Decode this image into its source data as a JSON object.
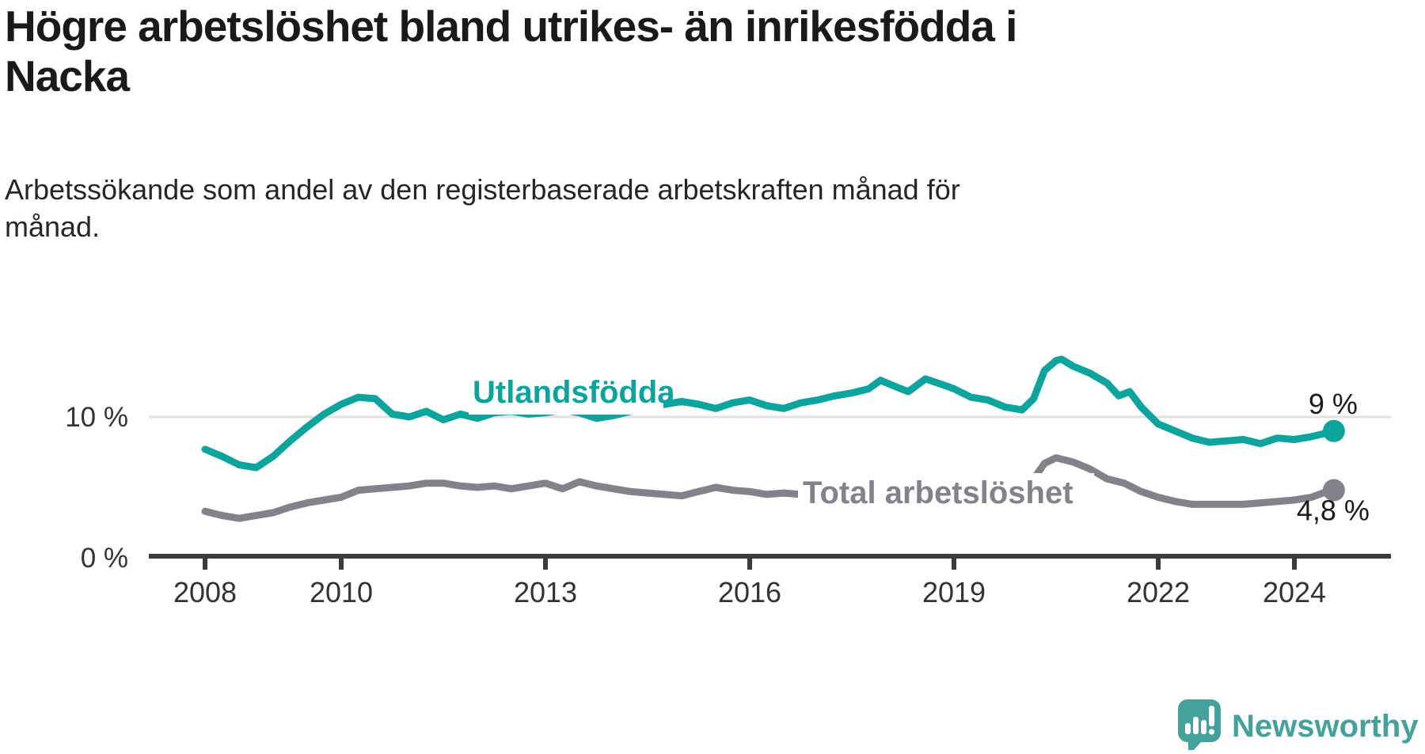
{
  "header": {
    "title": "Högre arbetslöshet bland utrikes- än inrikesfödda i\nNacka",
    "subtitle": "Arbetssökande som andel av den registerbaserade arbetskraften månad för\nmånad."
  },
  "chart_data": {
    "type": "line",
    "title": "Högre arbetslöshet bland utrikes- än inrikesfödda i Nacka",
    "subtitle": "Arbetssökande som andel av den registerbaserade arbetskraften månad för månad.",
    "unit": "%",
    "grid": "single horizontal gridline at 10 %",
    "legend_position": "inline labels on lines",
    "x_axis": {
      "ticks": [
        2008,
        2010,
        2013,
        2016,
        2019,
        2022,
        2024
      ],
      "range": [
        2007.2,
        2025.4
      ]
    },
    "y_axis": {
      "ticks": [
        {
          "value": 10,
          "label": "10 %"
        },
        {
          "value": 0,
          "label": "0 %"
        }
      ],
      "range": [
        0,
        15.5
      ]
    },
    "series": [
      {
        "name": "Utlandsfödda",
        "color": "#0ca49c",
        "end_label": "9 %",
        "end_value": 9.0,
        "points": [
          [
            2008.0,
            7.7
          ],
          [
            2008.25,
            7.2
          ],
          [
            2008.5,
            6.6
          ],
          [
            2008.75,
            6.4
          ],
          [
            2009.0,
            7.2
          ],
          [
            2009.25,
            8.3
          ],
          [
            2009.5,
            9.3
          ],
          [
            2009.75,
            10.2
          ],
          [
            2010.0,
            10.9
          ],
          [
            2010.25,
            11.4
          ],
          [
            2010.5,
            11.3
          ],
          [
            2010.75,
            10.2
          ],
          [
            2011.0,
            10.0
          ],
          [
            2011.25,
            10.4
          ],
          [
            2011.5,
            9.8
          ],
          [
            2011.75,
            10.2
          ],
          [
            2012.0,
            9.9
          ],
          [
            2012.25,
            10.3
          ],
          [
            2012.5,
            10.4
          ],
          [
            2012.75,
            10.2
          ],
          [
            2013.0,
            10.3
          ],
          [
            2013.25,
            10.5
          ],
          [
            2013.5,
            10.3
          ],
          [
            2013.75,
            9.9
          ],
          [
            2014.0,
            10.1
          ],
          [
            2014.25,
            10.4
          ],
          [
            2014.5,
            10.6
          ],
          [
            2014.75,
            10.9
          ],
          [
            2015.0,
            11.1
          ],
          [
            2015.25,
            10.9
          ],
          [
            2015.5,
            10.6
          ],
          [
            2015.75,
            11.0
          ],
          [
            2016.0,
            11.2
          ],
          [
            2016.25,
            10.8
          ],
          [
            2016.5,
            10.6
          ],
          [
            2016.75,
            11.0
          ],
          [
            2017.0,
            11.2
          ],
          [
            2017.25,
            11.5
          ],
          [
            2017.5,
            11.7
          ],
          [
            2017.75,
            12.0
          ],
          [
            2017.92,
            12.6
          ],
          [
            2018.17,
            12.1
          ],
          [
            2018.33,
            11.8
          ],
          [
            2018.58,
            12.7
          ],
          [
            2018.83,
            12.3
          ],
          [
            2019.0,
            12.0
          ],
          [
            2019.25,
            11.4
          ],
          [
            2019.5,
            11.2
          ],
          [
            2019.75,
            10.7
          ],
          [
            2020.0,
            10.5
          ],
          [
            2020.17,
            11.3
          ],
          [
            2020.33,
            13.3
          ],
          [
            2020.5,
            14.0
          ],
          [
            2020.58,
            14.1
          ],
          [
            2020.75,
            13.6
          ],
          [
            2021.0,
            13.1
          ],
          [
            2021.25,
            12.4
          ],
          [
            2021.42,
            11.5
          ],
          [
            2021.58,
            11.8
          ],
          [
            2021.75,
            10.7
          ],
          [
            2022.0,
            9.5
          ],
          [
            2022.25,
            9.0
          ],
          [
            2022.5,
            8.5
          ],
          [
            2022.75,
            8.2
          ],
          [
            2023.0,
            8.3
          ],
          [
            2023.25,
            8.4
          ],
          [
            2023.5,
            8.1
          ],
          [
            2023.75,
            8.5
          ],
          [
            2024.0,
            8.4
          ],
          [
            2024.25,
            8.6
          ],
          [
            2024.42,
            8.8
          ],
          [
            2024.58,
            9.0
          ]
        ]
      },
      {
        "name": "Total arbetslöshet",
        "color": "#82828a",
        "end_label": "4,8 %",
        "end_value": 4.8,
        "points": [
          [
            2008.0,
            3.3
          ],
          [
            2008.25,
            3.0
          ],
          [
            2008.5,
            2.8
          ],
          [
            2008.75,
            3.0
          ],
          [
            2009.0,
            3.2
          ],
          [
            2009.25,
            3.6
          ],
          [
            2009.5,
            3.9
          ],
          [
            2009.75,
            4.1
          ],
          [
            2010.0,
            4.3
          ],
          [
            2010.25,
            4.8
          ],
          [
            2010.5,
            4.9
          ],
          [
            2010.75,
            5.0
          ],
          [
            2011.0,
            5.1
          ],
          [
            2011.25,
            5.3
          ],
          [
            2011.5,
            5.3
          ],
          [
            2011.75,
            5.1
          ],
          [
            2012.0,
            5.0
          ],
          [
            2012.25,
            5.1
          ],
          [
            2012.5,
            4.9
          ],
          [
            2012.75,
            5.1
          ],
          [
            2013.0,
            5.3
          ],
          [
            2013.25,
            4.9
          ],
          [
            2013.5,
            5.4
          ],
          [
            2013.75,
            5.1
          ],
          [
            2014.0,
            4.9
          ],
          [
            2014.25,
            4.7
          ],
          [
            2014.5,
            4.6
          ],
          [
            2014.75,
            4.5
          ],
          [
            2015.0,
            4.4
          ],
          [
            2015.25,
            4.7
          ],
          [
            2015.5,
            5.0
          ],
          [
            2015.75,
            4.8
          ],
          [
            2016.0,
            4.7
          ],
          [
            2016.25,
            4.5
          ],
          [
            2016.5,
            4.6
          ],
          [
            2016.75,
            4.5
          ],
          [
            2017.0,
            4.6
          ],
          [
            2017.25,
            4.7
          ],
          [
            2017.5,
            4.6
          ],
          [
            2017.75,
            4.7
          ],
          [
            2018.0,
            4.8
          ],
          [
            2018.25,
            4.7
          ],
          [
            2018.5,
            4.8
          ],
          [
            2018.75,
            4.7
          ],
          [
            2019.0,
            4.6
          ],
          [
            2019.25,
            4.5
          ],
          [
            2019.5,
            4.6
          ],
          [
            2019.75,
            4.7
          ],
          [
            2020.0,
            4.9
          ],
          [
            2020.17,
            5.6
          ],
          [
            2020.33,
            6.7
          ],
          [
            2020.5,
            7.1
          ],
          [
            2020.75,
            6.8
          ],
          [
            2021.0,
            6.3
          ],
          [
            2021.25,
            5.6
          ],
          [
            2021.5,
            5.3
          ],
          [
            2021.75,
            4.7
          ],
          [
            2022.0,
            4.3
          ],
          [
            2022.25,
            4.0
          ],
          [
            2022.5,
            3.8
          ],
          [
            2022.75,
            3.8
          ],
          [
            2023.0,
            3.8
          ],
          [
            2023.25,
            3.8
          ],
          [
            2023.5,
            3.9
          ],
          [
            2023.75,
            4.0
          ],
          [
            2024.0,
            4.1
          ],
          [
            2024.25,
            4.3
          ],
          [
            2024.42,
            4.6
          ],
          [
            2024.58,
            4.8
          ]
        ]
      }
    ]
  },
  "branding": {
    "logo_text": "Newsworthy",
    "logo_color": "#44a19c",
    "logo_icon": "speech-bubble-bar-chart-icon"
  }
}
